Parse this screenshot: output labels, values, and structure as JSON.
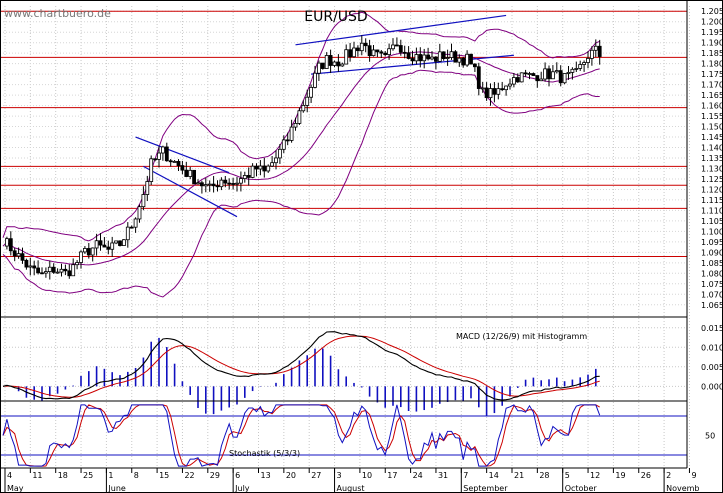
{
  "watermark": "www.chartbuero.de",
  "chart_data": {
    "type": "candlestick",
    "title": "EUR/USD",
    "price_axis": {
      "ticks": [
        1.205,
        1.2,
        1.195,
        1.19,
        1.185,
        1.18,
        1.175,
        1.17,
        1.165,
        1.16,
        1.155,
        1.15,
        1.145,
        1.14,
        1.135,
        1.13,
        1.125,
        1.12,
        1.115,
        1.11,
        1.105,
        1.1,
        1.095,
        1.09,
        1.085,
        1.08,
        1.075,
        1.07,
        1.065
      ],
      "ylim": [
        1.0625,
        1.2075
      ]
    },
    "date_ticks": [
      "4",
      "11",
      "18",
      "25",
      "1",
      "8",
      "15",
      "22",
      "29",
      "6",
      "13",
      "20",
      "27",
      "3",
      "10",
      "17",
      "24",
      "31",
      "7",
      "14",
      "21",
      "28",
      "5",
      "12",
      "19",
      "26",
      "2",
      "9"
    ],
    "month_labels": [
      "May",
      "June",
      "July",
      "August",
      "September",
      "October",
      "Novemb"
    ],
    "horizontal_lines": [
      1.205,
      1.183,
      1.159,
      1.131,
      1.122,
      1.111,
      1.088
    ],
    "price_points": [
      [
        0,
        1.096
      ],
      [
        4,
        1.088
      ],
      [
        7,
        1.082
      ],
      [
        10,
        1.079
      ],
      [
        13,
        1.082
      ],
      [
        16,
        1.08
      ],
      [
        18,
        1.083
      ],
      [
        21,
        1.09
      ],
      [
        24,
        1.093
      ],
      [
        27,
        1.091
      ],
      [
        30,
        1.094
      ],
      [
        33,
        1.103
      ],
      [
        36,
        1.118
      ],
      [
        38,
        1.132
      ],
      [
        41,
        1.138
      ],
      [
        44,
        1.133
      ],
      [
        47,
        1.128
      ],
      [
        50,
        1.124
      ],
      [
        53,
        1.12
      ],
      [
        56,
        1.125
      ],
      [
        59,
        1.123
      ],
      [
        62,
        1.126
      ],
      [
        65,
        1.13
      ],
      [
        67,
        1.128
      ],
      [
        70,
        1.135
      ],
      [
        73,
        1.144
      ],
      [
        75,
        1.153
      ],
      [
        78,
        1.165
      ],
      [
        81,
        1.178
      ],
      [
        83,
        1.182
      ],
      [
        86,
        1.181
      ],
      [
        89,
        1.185
      ],
      [
        92,
        1.19
      ],
      [
        95,
        1.184
      ],
      [
        98,
        1.182
      ],
      [
        101,
        1.19
      ],
      [
        104,
        1.185
      ],
      [
        107,
        1.183
      ],
      [
        110,
        1.182
      ],
      [
        113,
        1.184
      ],
      [
        116,
        1.183
      ],
      [
        119,
        1.182
      ],
      [
        121,
        1.176
      ],
      [
        123,
        1.166
      ],
      [
        126,
        1.165
      ],
      [
        129,
        1.171
      ],
      [
        132,
        1.174
      ],
      [
        135,
        1.174
      ],
      [
        138,
        1.175
      ],
      [
        141,
        1.175
      ],
      [
        144,
        1.173
      ],
      [
        147,
        1.175
      ],
      [
        150,
        1.184
      ],
      [
        152,
        1.186
      ],
      [
        153,
        1.184
      ]
    ],
    "indicators": [
      {
        "name": "MACD (12/26/9) mit Histogramm",
        "ticks": [
          0.015,
          0.01,
          0.005,
          0.0
        ],
        "ylim": [
          -0.0035,
          0.0175
        ]
      },
      {
        "name": "Stochastik (5/3/3)",
        "ticks": [
          50
        ],
        "ylim": [
          0,
          100
        ]
      }
    ],
    "colors": {
      "grid": "#c8c8c8",
      "hline": "#cc0000",
      "bollinger": "#800080",
      "trend": "#1010c0",
      "macd": "#000000",
      "signal": "#cc0000",
      "histogram": "#1010c0",
      "stoch_k": "#1010c0",
      "stoch_d": "#cc0000"
    }
  }
}
